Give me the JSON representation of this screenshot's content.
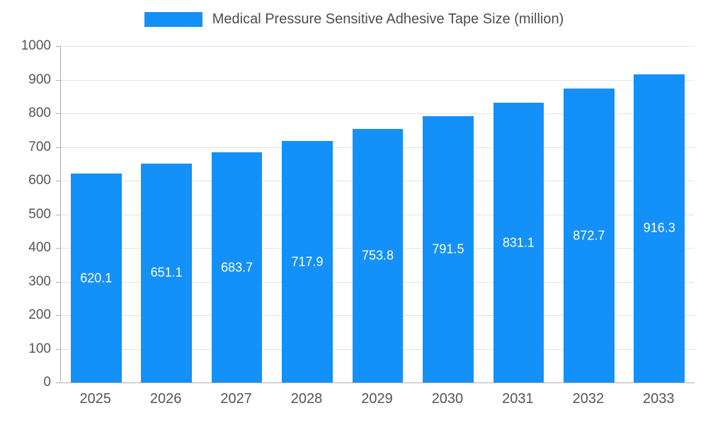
{
  "colors": {
    "bar": "#1490F9",
    "bar_value_text": "#ffffff",
    "axis_text": "#555555",
    "title_text": "#4d4d4d",
    "gridline": "#e3e3e3",
    "axis_line": "#b0b0b0"
  },
  "legend": {
    "label": "Medical Pressure Sensitive Adhesive Tape Size (million)"
  },
  "chart_data": {
    "type": "bar",
    "title": "Medical Pressure Sensitive Adhesive Tape Size (million)",
    "categories": [
      "2025",
      "2026",
      "2027",
      "2028",
      "2029",
      "2030",
      "2031",
      "2032",
      "2033"
    ],
    "values": [
      620.1,
      651.1,
      683.7,
      717.9,
      753.8,
      791.5,
      831.1,
      872.7,
      916.3
    ],
    "series_name": "Medical Pressure Sensitive Adhesive Tape Size (million)",
    "xlabel": "",
    "ylabel": "",
    "ylim": [
      0,
      1000
    ],
    "ytick_step": 100,
    "grid": true,
    "legend_position": "top",
    "value_labels": "inside-center",
    "value_label_format": "1-decimal"
  }
}
